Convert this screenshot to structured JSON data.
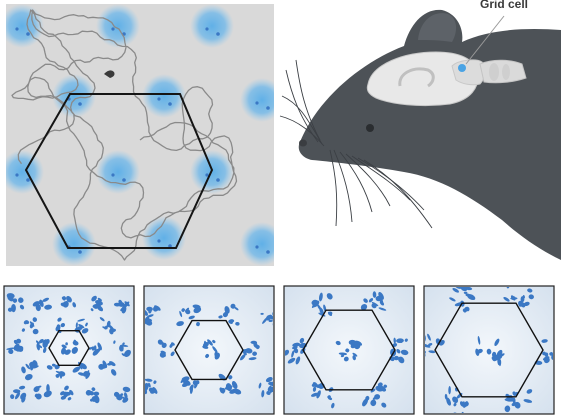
{
  "figure": {
    "mouse_label": "Grid cell",
    "colors": {
      "field": "#5aaee8",
      "firing": "#3b78c4",
      "trajectory": "#8a8a8a",
      "arena_bg": "#d9d9d9",
      "panel_bg": "#e3ebf3",
      "mouse_body": "#4d5257",
      "mouse_brain": "#e6e6e6",
      "hexagon": "#111111"
    },
    "firing_fields_count": 12,
    "bottom_panels": [
      {
        "name": "grid-scale-1",
        "grid_scale": 1
      },
      {
        "name": "grid-scale-2",
        "grid_scale": 2
      },
      {
        "name": "grid-scale-3",
        "grid_scale": 3
      },
      {
        "name": "grid-scale-4",
        "grid_scale": 4
      }
    ]
  }
}
